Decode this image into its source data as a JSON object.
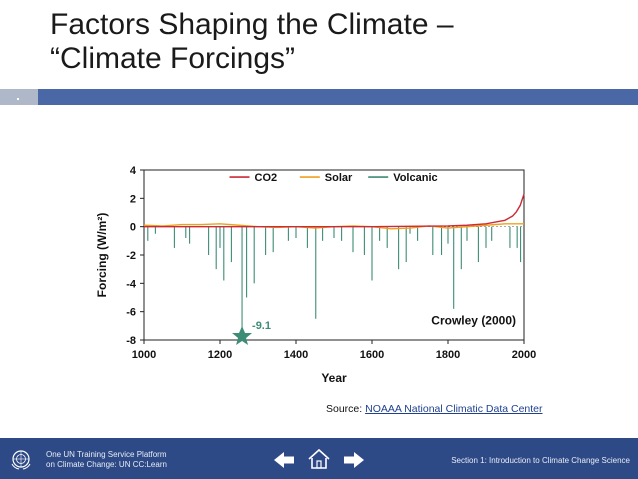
{
  "slide": {
    "title_line1": "Factors Shaping the Climate –",
    "title_line2": "“Climate Forcings”"
  },
  "chart_data": {
    "type": "line",
    "xlabel": "Year",
    "ylabel": "Forcing (W/m²)",
    "xlim": [
      1000,
      2000
    ],
    "ylim": [
      -8,
      4
    ],
    "xticks": [
      1000,
      1200,
      1400,
      1600,
      1800,
      2000
    ],
    "yticks": [
      4,
      2,
      0,
      -2,
      -4,
      -6,
      -8
    ],
    "legend": [
      "CO2",
      "Solar",
      "Volcanic"
    ],
    "legend_position": "top-right",
    "annotations": [
      "-9.1",
      "Crowley (2000)"
    ],
    "colors": {
      "CO2": "#cc2a36",
      "Solar": "#f0a020",
      "Volcanic": "#3d8c76"
    },
    "series": [
      {
        "name": "CO2",
        "x": [
          1000,
          1600,
          1800,
          1850,
          1900,
          1930,
          1950,
          1970,
          1980,
          1990,
          2000
        ],
        "values": [
          0.0,
          0.0,
          0.05,
          0.1,
          0.2,
          0.35,
          0.45,
          0.75,
          1.05,
          1.5,
          2.3
        ]
      },
      {
        "name": "Solar",
        "x": [
          1000,
          1050,
          1100,
          1150,
          1200,
          1250,
          1300,
          1350,
          1400,
          1450,
          1500,
          1550,
          1600,
          1650,
          1700,
          1750,
          1800,
          1850,
          1900,
          1950,
          2000
        ],
        "values": [
          0.1,
          0.05,
          0.15,
          0.15,
          0.2,
          0.1,
          0.0,
          -0.05,
          0.0,
          -0.1,
          0.0,
          0.05,
          0.0,
          -0.15,
          -0.1,
          0.05,
          -0.1,
          0.0,
          0.1,
          0.2,
          0.2
        ]
      },
      {
        "name": "Volcanic",
        "x": [
          1010,
          1030,
          1080,
          1110,
          1120,
          1170,
          1190,
          1200,
          1210,
          1230,
          1258,
          1270,
          1290,
          1320,
          1340,
          1380,
          1400,
          1430,
          1452,
          1470,
          1500,
          1520,
          1550,
          1580,
          1600,
          1620,
          1640,
          1670,
          1690,
          1700,
          1720,
          1760,
          1783,
          1800,
          1815,
          1835,
          1850,
          1880,
          1900,
          1915,
          1963,
          1982,
          1991
        ],
        "values": [
          -1.0,
          -0.5,
          -1.5,
          -0.8,
          -1.2,
          -2.0,
          -3.0,
          -1.5,
          -3.8,
          -2.5,
          -9.1,
          -5.0,
          -4.0,
          -2.0,
          -1.8,
          -1.0,
          -0.8,
          -1.5,
          -6.5,
          -1.0,
          -0.8,
          -1.0,
          -1.8,
          -2.0,
          -3.8,
          -1.0,
          -1.5,
          -3.0,
          -2.5,
          -0.5,
          -1.0,
          -2.0,
          -2.0,
          -1.2,
          -5.8,
          -3.0,
          -1.0,
          -2.5,
          -1.5,
          -1.0,
          -1.5,
          -1.5,
          -2.5
        ]
      }
    ]
  },
  "source": {
    "prefix": "Source: ",
    "link": "NOAAA National Climatic Data Center"
  },
  "footer": {
    "org_line1": "One UN Training Service Platform",
    "org_line2": "on Climate Change: UN CC:Learn",
    "section": "Section 1: Introduction to Climate Change Science"
  }
}
